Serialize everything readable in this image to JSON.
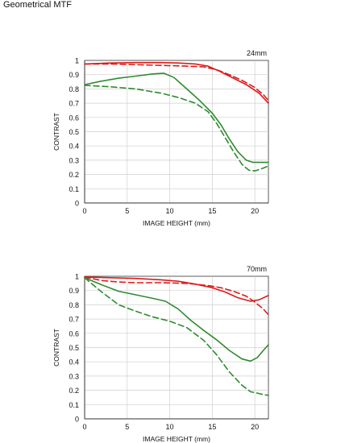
{
  "page": {
    "title": "Geometrical MTF"
  },
  "colors": {
    "sagittal_series": "#dd1a1a",
    "meridional_series": "#2e8b2e",
    "grid": "#cfcfcf",
    "axis": "#333333"
  },
  "chart_data": [
    {
      "type": "line",
      "title": "24mm",
      "xlabel": "IMAGE HEIGHT (mm)",
      "ylabel": "CONTRAST",
      "xlim": [
        0,
        21.6
      ],
      "ylim": [
        0,
        1
      ],
      "x_ticks": [
        0,
        5,
        10,
        15,
        20
      ],
      "y_ticks": [
        0,
        0.1,
        0.2,
        0.3,
        0.4,
        0.5,
        0.6,
        0.7,
        0.8,
        0.9,
        1
      ],
      "grid": true,
      "series": [
        {
          "color": "#dd1a1a",
          "dash": "solid",
          "x": [
            0,
            3,
            6,
            9,
            11,
            13,
            14.5,
            16,
            17.5,
            19,
            20.5,
            21.6
          ],
          "y": [
            0.975,
            0.982,
            0.985,
            0.985,
            0.982,
            0.975,
            0.96,
            0.92,
            0.875,
            0.83,
            0.77,
            0.7
          ]
        },
        {
          "color": "#dd1a1a",
          "dash": "dashed",
          "x": [
            0,
            3,
            6,
            9,
            12,
            14,
            15.5,
            17,
            18.5,
            20,
            21,
            21.6
          ],
          "y": [
            0.975,
            0.975,
            0.97,
            0.965,
            0.96,
            0.955,
            0.935,
            0.9,
            0.86,
            0.81,
            0.76,
            0.72
          ]
        },
        {
          "color": "#2e8b2e",
          "dash": "solid",
          "x": [
            0,
            2,
            4,
            6,
            8,
            9.3,
            10.5,
            12,
            13.5,
            15,
            16,
            17,
            18,
            19,
            19.8,
            20.5,
            21.6
          ],
          "y": [
            0.83,
            0.855,
            0.875,
            0.89,
            0.905,
            0.91,
            0.88,
            0.8,
            0.72,
            0.63,
            0.55,
            0.45,
            0.36,
            0.3,
            0.285,
            0.285,
            0.285
          ]
        },
        {
          "color": "#2e8b2e",
          "dash": "dashed",
          "x": [
            0,
            3,
            6,
            9,
            11,
            13,
            14.5,
            15.5,
            16.5,
            17.5,
            18.5,
            19.3,
            20,
            20.8,
            21.6
          ],
          "y": [
            0.825,
            0.815,
            0.8,
            0.77,
            0.74,
            0.7,
            0.64,
            0.56,
            0.46,
            0.36,
            0.27,
            0.23,
            0.225,
            0.24,
            0.26
          ]
        }
      ]
    },
    {
      "type": "line",
      "title": "70mm",
      "xlabel": "IMAGE HEIGHT (mm)",
      "ylabel": "CONTRAST",
      "xlim": [
        0,
        21.6
      ],
      "ylim": [
        0,
        1
      ],
      "x_ticks": [
        0,
        5,
        10,
        15,
        20
      ],
      "y_ticks": [
        0,
        0.1,
        0.2,
        0.3,
        0.4,
        0.5,
        0.6,
        0.7,
        0.8,
        0.9,
        1
      ],
      "grid": true,
      "series": [
        {
          "color": "#dd1a1a",
          "dash": "solid",
          "x": [
            0,
            3,
            6,
            9,
            11,
            13,
            15,
            16.5,
            18,
            19.5,
            20.5,
            21.6
          ],
          "y": [
            0.995,
            0.99,
            0.985,
            0.975,
            0.965,
            0.945,
            0.92,
            0.89,
            0.85,
            0.825,
            0.835,
            0.865
          ]
        },
        {
          "color": "#dd1a1a",
          "dash": "dashed",
          "x": [
            0,
            2,
            4,
            6,
            9,
            12,
            14.5,
            16,
            17.5,
            19,
            20,
            21,
            21.6
          ],
          "y": [
            0.995,
            0.97,
            0.96,
            0.955,
            0.955,
            0.95,
            0.935,
            0.92,
            0.895,
            0.86,
            0.82,
            0.77,
            0.73
          ]
        },
        {
          "color": "#2e8b2e",
          "dash": "solid",
          "x": [
            0,
            2,
            4,
            6,
            8,
            9.5,
            11,
            12.5,
            14,
            15.5,
            17,
            18.5,
            19.5,
            20.3,
            21,
            21.6
          ],
          "y": [
            0.99,
            0.94,
            0.895,
            0.87,
            0.845,
            0.825,
            0.77,
            0.69,
            0.62,
            0.555,
            0.48,
            0.42,
            0.405,
            0.43,
            0.48,
            0.52
          ]
        },
        {
          "color": "#2e8b2e",
          "dash": "dashed",
          "x": [
            0,
            2,
            4,
            6,
            8,
            10,
            12,
            14,
            15.5,
            17,
            18.5,
            19.5,
            20.3,
            21,
            21.6
          ],
          "y": [
            0.99,
            0.89,
            0.8,
            0.755,
            0.715,
            0.685,
            0.64,
            0.55,
            0.45,
            0.33,
            0.235,
            0.19,
            0.18,
            0.17,
            0.165
          ]
        }
      ]
    }
  ]
}
